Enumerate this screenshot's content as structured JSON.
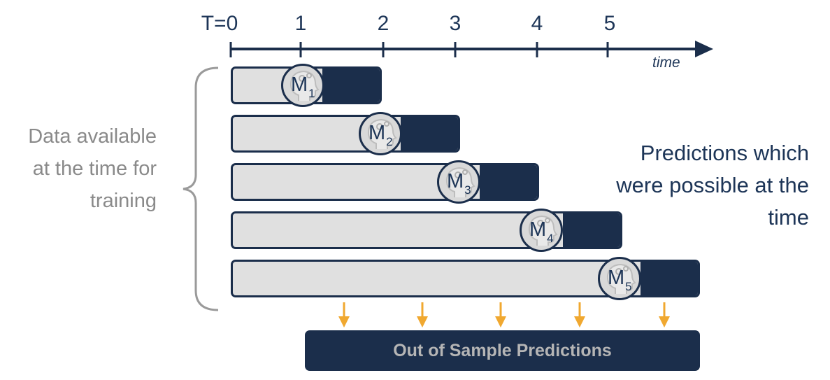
{
  "timeline": {
    "ticks": [
      "T=0",
      "1",
      "2",
      "3",
      "4",
      "5"
    ],
    "axis_label": "time"
  },
  "models": [
    {
      "letter": "M",
      "index": "1"
    },
    {
      "letter": "M",
      "index": "2"
    },
    {
      "letter": "M",
      "index": "3"
    },
    {
      "letter": "M",
      "index": "4"
    },
    {
      "letter": "M",
      "index": "5"
    }
  ],
  "left_note": "Data available at the time for training",
  "right_note": "Predictions which were possible at the time",
  "output_box": {
    "label": "Out of Sample Predictions"
  },
  "colors": {
    "navy": "#1b2e4b",
    "text_navy": "#1d3557",
    "bar_fill": "#e0e0e0",
    "gray_text": "#8a8a8a",
    "arrow": "#f0a830",
    "bracket": "#9a9a9a"
  },
  "icons": {
    "model": "brain-head-icon",
    "prediction_arrow": "down-arrow-icon"
  }
}
